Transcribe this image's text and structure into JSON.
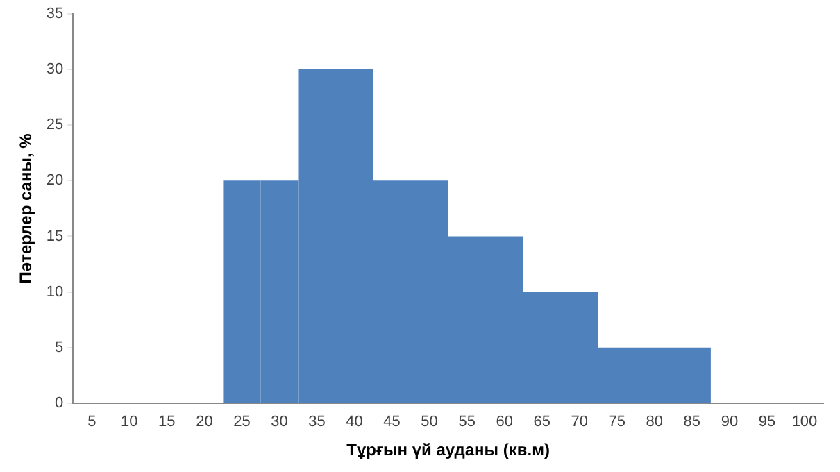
{
  "chart_data": {
    "type": "histogram",
    "xlabel": "Тұрғын үй ауданы (кв.м)",
    "ylabel": "Пәтерлер саны, %",
    "bins": [
      22.5,
      27.5,
      32.5,
      42.5,
      52.5,
      62.5,
      72.5,
      87.5
    ],
    "values": [
      20,
      20,
      30,
      20,
      15,
      10,
      5
    ],
    "color": "#4f81bd",
    "xlim": [
      2.5,
      102.5
    ],
    "xticks": [
      5,
      10,
      15,
      20,
      25,
      30,
      35,
      40,
      45,
      50,
      55,
      60,
      65,
      70,
      75,
      80,
      85,
      90,
      95,
      100
    ],
    "ylim": [
      0,
      35
    ],
    "yticks": [
      0,
      5,
      10,
      15,
      20,
      25,
      30,
      35
    ],
    "grid": false,
    "legend": false
  }
}
